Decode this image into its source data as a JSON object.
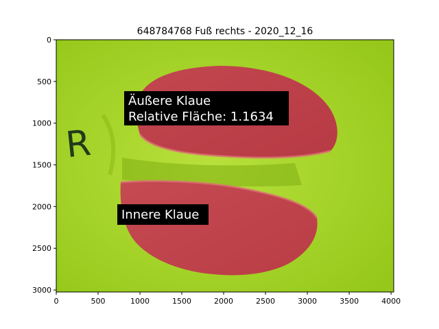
{
  "title": "648784768 Fuß rechts - 2020_12_16",
  "x_ticks": [
    "0",
    "500",
    "1000",
    "1500",
    "2000",
    "2500",
    "3000",
    "3500",
    "4000"
  ],
  "y_ticks": [
    "0",
    "500",
    "1000",
    "1500",
    "2000",
    "2500",
    "3000"
  ],
  "image": {
    "width": 4032,
    "height": 3024,
    "marker_letter": "R"
  },
  "annotations": {
    "outer": {
      "line1": "Äußere Klaue",
      "line2": "Relative Fläche: 1.1634"
    },
    "inner": {
      "line1": "Innere Klaue"
    }
  },
  "colors": {
    "background": "#a2d420",
    "mask": "#c9525b",
    "box": "#000000",
    "box_text": "#ffffff"
  }
}
